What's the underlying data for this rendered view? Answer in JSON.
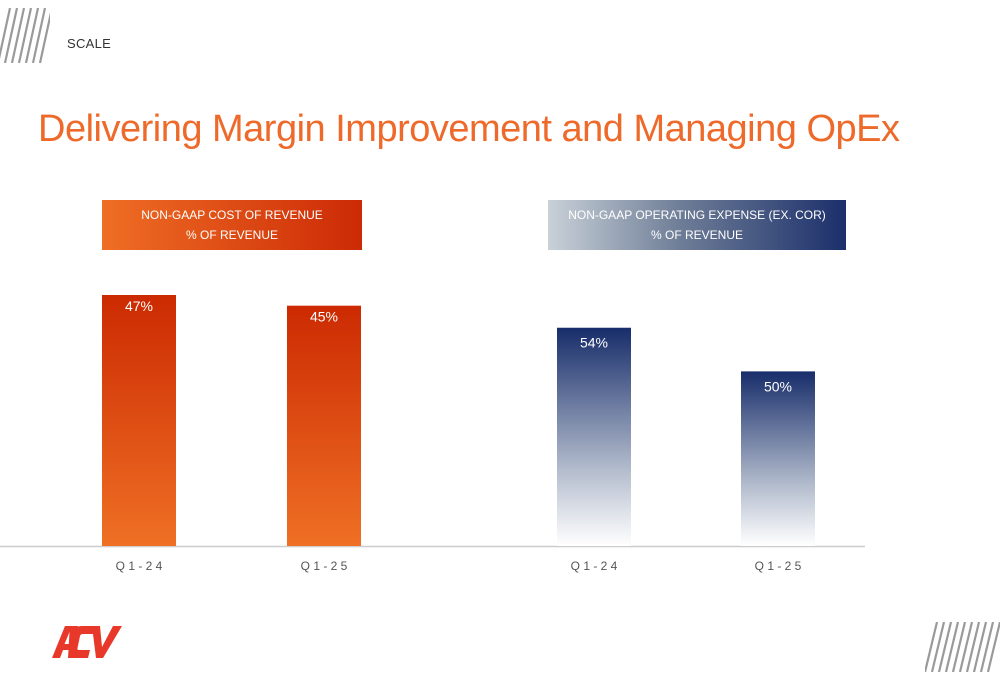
{
  "header": {
    "section": "SCALE"
  },
  "title": "Delivering Margin Improvement and Managing OpEx",
  "logo_text": "ACV",
  "colors": {
    "title": "#ee6a2a",
    "orange_light": "#ee6a25",
    "orange_dark": "#cc2a02",
    "navy": "#172d6a",
    "axis": "#cccccc"
  },
  "chart_data": [
    {
      "type": "bar",
      "title_lines": [
        "NON-GAAP COST OF REVENUE",
        "% OF REVENUE"
      ],
      "categories": [
        "Q 1 - 2 4",
        "Q 1 - 2 5"
      ],
      "values": [
        47,
        45
      ],
      "labels": [
        "47%",
        "45%"
      ],
      "unit": "%",
      "ylim": [
        0,
        47
      ],
      "grid": false,
      "legend": "none"
    },
    {
      "type": "bar",
      "title_lines": [
        "NON-GAAP OPERATING EXPENSE (EX. COR)",
        "% OF REVENUE"
      ],
      "categories": [
        "Q 1 - 2 4",
        "Q 1 - 2 5"
      ],
      "values": [
        54,
        50
      ],
      "labels": [
        "54%",
        "50%"
      ],
      "unit": "%",
      "ylim": [
        34,
        57
      ],
      "grid": false,
      "legend": "none"
    }
  ]
}
